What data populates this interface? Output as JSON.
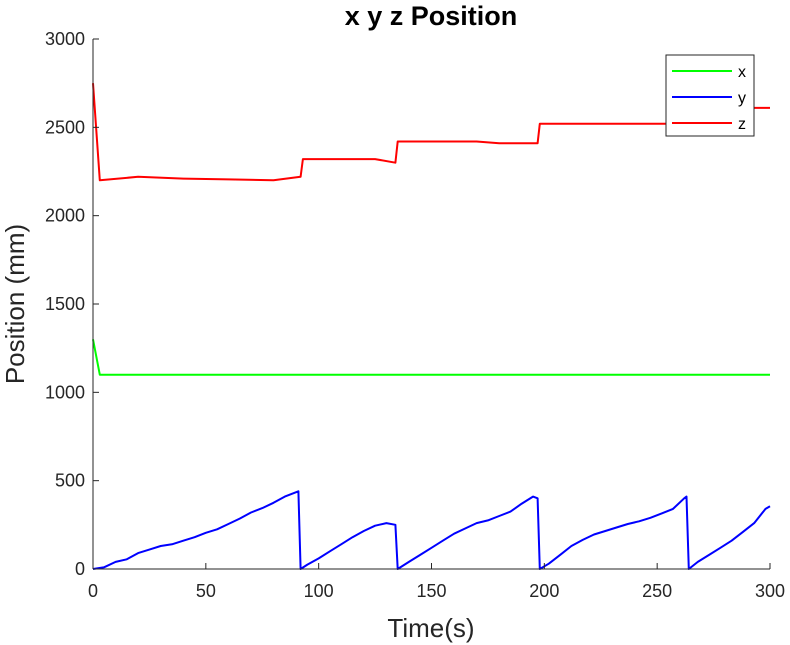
{
  "chart_data": {
    "type": "line",
    "title": "x y z Position",
    "xlabel": "Time(s)",
    "ylabel": "Position (mm)",
    "xlim": [
      0,
      300
    ],
    "ylim": [
      0,
      3000
    ],
    "xticks": [
      0,
      50,
      100,
      150,
      200,
      250,
      300
    ],
    "yticks": [
      0,
      500,
      1000,
      1500,
      2000,
      2500,
      3000
    ],
    "grid": false,
    "legend_position": "top-right",
    "series": [
      {
        "name": "x",
        "color": "#00ff00",
        "points": [
          [
            0,
            1300
          ],
          [
            3,
            1100
          ],
          [
            300,
            1100
          ]
        ]
      },
      {
        "name": "y",
        "color": "#0000ff",
        "points": [
          [
            0,
            0
          ],
          [
            5,
            10
          ],
          [
            10,
            40
          ],
          [
            15,
            55
          ],
          [
            20,
            90
          ],
          [
            25,
            110
          ],
          [
            30,
            130
          ],
          [
            35,
            140
          ],
          [
            40,
            160
          ],
          [
            45,
            180
          ],
          [
            50,
            205
          ],
          [
            55,
            225
          ],
          [
            60,
            255
          ],
          [
            65,
            285
          ],
          [
            70,
            320
          ],
          [
            75,
            345
          ],
          [
            80,
            375
          ],
          [
            85,
            410
          ],
          [
            91,
            440
          ],
          [
            92,
            0
          ],
          [
            95,
            25
          ],
          [
            100,
            60
          ],
          [
            105,
            100
          ],
          [
            110,
            140
          ],
          [
            115,
            180
          ],
          [
            120,
            215
          ],
          [
            125,
            245
          ],
          [
            130,
            260
          ],
          [
            134,
            250
          ],
          [
            135,
            0
          ],
          [
            140,
            40
          ],
          [
            145,
            80
          ],
          [
            150,
            120
          ],
          [
            155,
            160
          ],
          [
            160,
            200
          ],
          [
            165,
            230
          ],
          [
            170,
            260
          ],
          [
            175,
            275
          ],
          [
            180,
            300
          ],
          [
            185,
            325
          ],
          [
            190,
            370
          ],
          [
            195,
            410
          ],
          [
            197,
            400
          ],
          [
            198,
            0
          ],
          [
            202,
            30
          ],
          [
            207,
            80
          ],
          [
            212,
            130
          ],
          [
            217,
            165
          ],
          [
            222,
            195
          ],
          [
            227,
            215
          ],
          [
            232,
            235
          ],
          [
            237,
            255
          ],
          [
            242,
            270
          ],
          [
            247,
            290
          ],
          [
            252,
            315
          ],
          [
            257,
            340
          ],
          [
            262,
            400
          ],
          [
            263,
            410
          ],
          [
            264,
            0
          ],
          [
            268,
            40
          ],
          [
            273,
            80
          ],
          [
            278,
            120
          ],
          [
            283,
            160
          ],
          [
            288,
            210
          ],
          [
            293,
            260
          ],
          [
            298,
            340
          ],
          [
            300,
            355
          ]
        ]
      },
      {
        "name": "z",
        "color": "#ff0000",
        "points": [
          [
            0,
            2750
          ],
          [
            3,
            2200
          ],
          [
            20,
            2220
          ],
          [
            40,
            2210
          ],
          [
            60,
            2205
          ],
          [
            80,
            2200
          ],
          [
            92,
            2220
          ],
          [
            93,
            2320
          ],
          [
            110,
            2320
          ],
          [
            125,
            2320
          ],
          [
            134,
            2300
          ],
          [
            135,
            2420
          ],
          [
            150,
            2420
          ],
          [
            170,
            2420
          ],
          [
            180,
            2410
          ],
          [
            197,
            2410
          ],
          [
            198,
            2520
          ],
          [
            220,
            2520
          ],
          [
            240,
            2520
          ],
          [
            255,
            2520
          ],
          [
            263,
            2520
          ],
          [
            264,
            2610
          ],
          [
            280,
            2610
          ],
          [
            300,
            2610
          ]
        ]
      }
    ]
  }
}
